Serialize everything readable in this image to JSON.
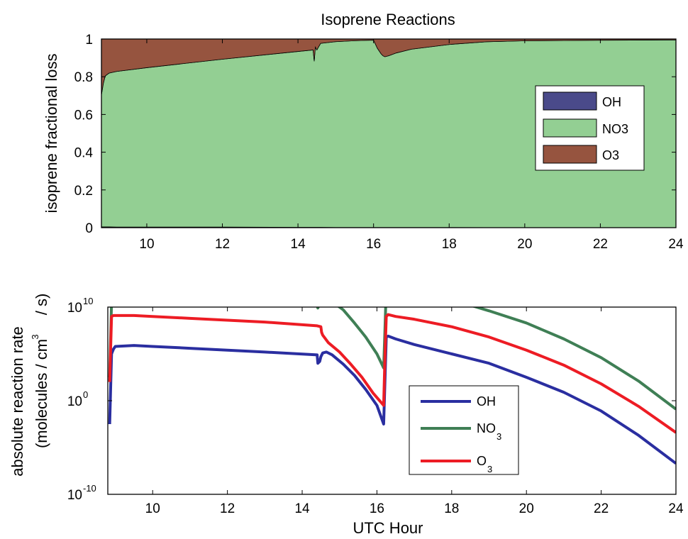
{
  "chart_data": [
    {
      "type": "area",
      "title": "Isoprene Reactions",
      "xlabel": "",
      "ylabel": "isoprene fractional loss",
      "xlim": [
        8.8,
        24
      ],
      "ylim": [
        0,
        1
      ],
      "x_ticks": [
        "10",
        "12",
        "14",
        "16",
        "18",
        "20",
        "22",
        "24"
      ],
      "y_ticks": [
        "0",
        "0.2",
        "0.4",
        "0.6",
        "0.8",
        "1"
      ],
      "stacked": true,
      "legend_position": "right",
      "legend": [
        "OH",
        "NO3",
        "O3"
      ],
      "x": [
        8.8,
        8.85,
        8.9,
        9.0,
        9.2,
        10,
        12,
        14,
        14.4,
        14.43,
        14.46,
        14.5,
        14.55,
        14.6,
        15,
        15.5,
        16,
        16.1,
        16.2,
        16.25,
        16.3,
        16.4,
        16.6,
        17,
        18,
        19,
        20,
        22,
        24
      ],
      "series": [
        {
          "name": "OH",
          "color": "#4a4a8a",
          "values": [
            0.004,
            0.004,
            0.004,
            0.004,
            0.003,
            0.003,
            0.003,
            0.002,
            0.002,
            0.002,
            0.002,
            0.002,
            0.002,
            0.002,
            0.001,
            0.001,
            0.001,
            0.001,
            0.001,
            0.001,
            0.001,
            0.001,
            0.001,
            0.001,
            0.001,
            0.0005,
            0.0005,
            0.0003,
            0.0002
          ]
        },
        {
          "name": "NO3",
          "color": "#93cf93",
          "values": [
            0.7,
            0.76,
            0.8,
            0.815,
            0.825,
            0.845,
            0.89,
            0.932,
            0.94,
            0.88,
            0.955,
            0.94,
            0.958,
            0.975,
            0.985,
            0.99,
            0.993,
            0.95,
            0.92,
            0.91,
            0.905,
            0.91,
            0.925,
            0.945,
            0.97,
            0.985,
            0.99,
            0.993,
            0.995
          ]
        },
        {
          "name": "O3",
          "color": "#96543f",
          "values": [
            0.296,
            0.236,
            0.196,
            0.181,
            0.172,
            0.152,
            0.107,
            0.066,
            0.058,
            0.118,
            0.043,
            0.058,
            0.04,
            0.023,
            0.014,
            0.009,
            0.006,
            0.049,
            0.079,
            0.089,
            0.094,
            0.089,
            0.074,
            0.054,
            0.029,
            0.0145,
            0.0095,
            0.0067,
            0.0048
          ]
        }
      ]
    },
    {
      "type": "line",
      "title": "",
      "xlabel": "UTC Hour",
      "ylabel": "absolute reaction rate",
      "ylabel2": "(molecules / cm",
      "ylabel2_sup": "3",
      "ylabel2_tail": "/ s)",
      "xlim": [
        8.8,
        24
      ],
      "ylim_log10": [
        -10,
        10
      ],
      "yscale": "log",
      "x_ticks": [
        "10",
        "12",
        "14",
        "16",
        "18",
        "20",
        "22",
        "24"
      ],
      "y_ticks": [
        {
          "base": "10",
          "exp": "10"
        },
        {
          "base": "10",
          "exp": "0"
        },
        {
          "base": "10",
          "exp": "-10"
        }
      ],
      "legend_position": "center",
      "legend": [
        {
          "text": "OH",
          "sub": ""
        },
        {
          "text": "NO",
          "sub": "3"
        },
        {
          "text": "O",
          "sub": "3"
        }
      ],
      "series": [
        {
          "name": "OH",
          "color": "#2a2ea0",
          "x": [
            8.85,
            8.9,
            8.95,
            9.0,
            9.5,
            10,
            11,
            12,
            13,
            14.4,
            14.42,
            14.47,
            14.5,
            14.55,
            14.65,
            14.8,
            15.1,
            15.4,
            15.7,
            16.0,
            16.18,
            16.21,
            16.25,
            16.3,
            16.5,
            17,
            18,
            19,
            20,
            21,
            22,
            23,
            24
          ],
          "log10_values": [
            -2.5,
            5.0,
            5.5,
            5.8,
            5.9,
            5.8,
            5.6,
            5.4,
            5.2,
            4.9,
            4.0,
            4.2,
            4.7,
            5.1,
            5.2,
            4.9,
            3.9,
            2.7,
            1.2,
            -0.5,
            -2.5,
            1.5,
            6.8,
            6.9,
            6.6,
            6.0,
            5.0,
            4.0,
            2.5,
            0.9,
            -1.1,
            -3.7,
            -6.7
          ]
        },
        {
          "name": "NO3",
          "color": "#3f7f55",
          "x": [
            8.85,
            8.9,
            8.95,
            9.0,
            9.5,
            10,
            11,
            12,
            13,
            14.4,
            14.42,
            14.5,
            14.6,
            14.7,
            14.8,
            15.1,
            15.4,
            15.7,
            16.0,
            16.18,
            16.21,
            16.25,
            16.3,
            16.5,
            17,
            18,
            19,
            20,
            21,
            22,
            23,
            24
          ],
          "log10_values": [
            2.5,
            10.6,
            10.8,
            10.8,
            10.8,
            10.7,
            10.6,
            10.5,
            10.4,
            10.2,
            9.9,
            10.8,
            11.2,
            11.0,
            10.6,
            9.7,
            8.3,
            6.8,
            5.0,
            3.5,
            7.0,
            12.0,
            11.8,
            11.7,
            11.5,
            10.8,
            9.6,
            8.3,
            6.6,
            4.6,
            2.1,
            -0.9
          ]
        },
        {
          "name": "O3",
          "color": "#ed1c24",
          "x": [
            8.85,
            8.9,
            8.95,
            9.0,
            9.5,
            10,
            11,
            12,
            13,
            14.4,
            14.5,
            14.52,
            14.55,
            14.7,
            15.0,
            15.3,
            15.6,
            15.9,
            16.18,
            16.21,
            16.25,
            16.3,
            16.5,
            17,
            18,
            19,
            20,
            21,
            22,
            23,
            24
          ],
          "log10_values": [
            2.0,
            9.0,
            9.1,
            9.1,
            9.1,
            9.0,
            8.8,
            8.6,
            8.4,
            8.0,
            7.9,
            7.3,
            7.0,
            6.2,
            5.2,
            3.9,
            2.5,
            0.8,
            -0.5,
            4.0,
            9.0,
            9.2,
            9.0,
            8.7,
            7.9,
            6.8,
            5.4,
            3.8,
            1.8,
            -0.6,
            -3.4
          ]
        }
      ]
    }
  ]
}
